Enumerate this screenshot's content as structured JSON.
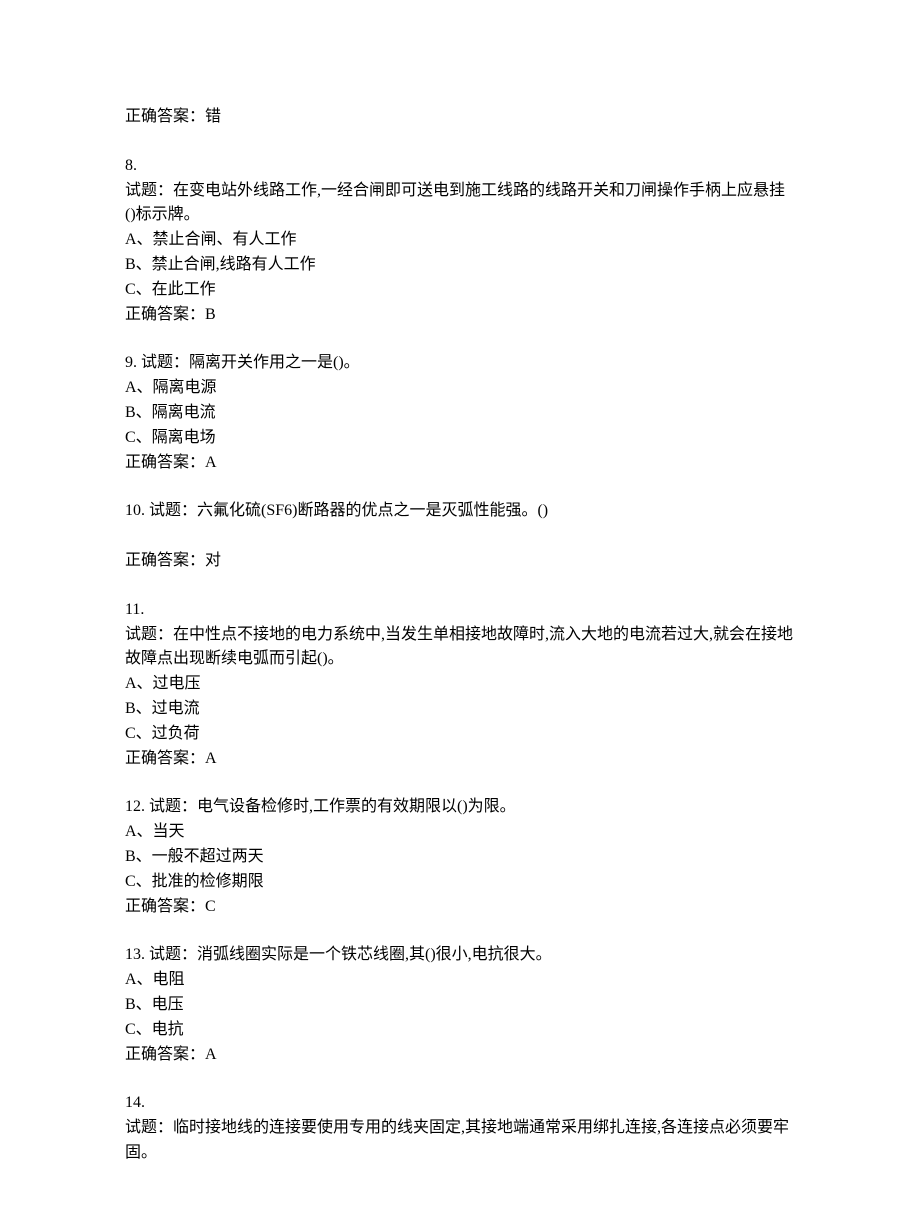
{
  "answer_7": {
    "label": "正确答案：错"
  },
  "q8": {
    "number": "8.",
    "stem": "试题：在变电站外线路工作,一经合闸即可送电到施工线路的线路开关和刀闸操作手柄上应悬挂()标示牌。",
    "opt_a": "A、禁止合闸、有人工作",
    "opt_b": "B、禁止合闸,线路有人工作",
    "opt_c": "C、在此工作",
    "answer": "正确答案：B"
  },
  "q9": {
    "header": "9. 试题：隔离开关作用之一是()。",
    "opt_a": "A、隔离电源",
    "opt_b": "B、隔离电流",
    "opt_c": "C、隔离电场",
    "answer": "正确答案：A"
  },
  "q10": {
    "header": "10. 试题：六氟化硫(SF6)断路器的优点之一是灭弧性能强。()",
    "answer": "正确答案：对"
  },
  "q11": {
    "number": "11.",
    "stem": "试题：在中性点不接地的电力系统中,当发生单相接地故障时,流入大地的电流若过大,就会在接地故障点出现断续电弧而引起()。",
    "opt_a": "A、过电压",
    "opt_b": "B、过电流",
    "opt_c": "C、过负荷",
    "answer": "正确答案：A"
  },
  "q12": {
    "header": "12. 试题：电气设备检修时,工作票的有效期限以()为限。",
    "opt_a": "A、当天",
    "opt_b": "B、一般不超过两天",
    "opt_c": "C、批准的检修期限",
    "answer": "正确答案：C"
  },
  "q13": {
    "header": "13. 试题：消弧线圈实际是一个铁芯线圈,其()很小,电抗很大。",
    "opt_a": "A、电阻",
    "opt_b": "B、电压",
    "opt_c": "C、电抗",
    "answer": "正确答案：A"
  },
  "q14": {
    "number": "14.",
    "stem": "试题：临时接地线的连接要使用专用的线夹固定,其接地端通常采用绑扎连接,各连接点必须要牢固。"
  }
}
